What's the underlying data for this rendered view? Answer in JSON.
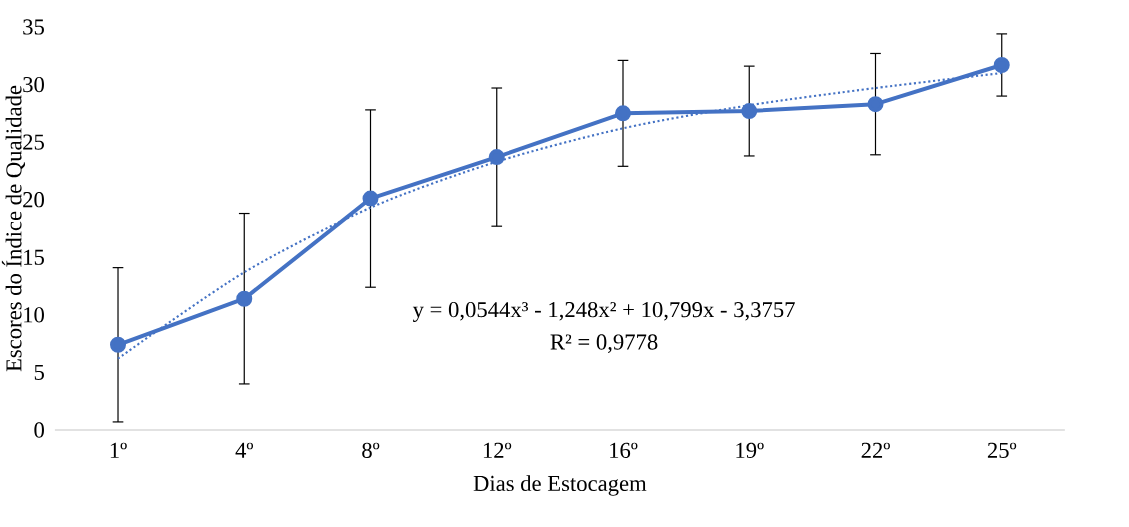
{
  "chart_data": {
    "type": "line",
    "xlabel": "Dias de Estocagem",
    "ylabel": "Escores do Índice de Qualidade",
    "categories": [
      "1º",
      "4º",
      "8º",
      "12º",
      "16º",
      "19º",
      "22º",
      "25º"
    ],
    "series": [
      {
        "color": "#4472c4",
        "marker": "circle",
        "line_style": "solid",
        "values": [
          7.4,
          11.4,
          20.1,
          23.7,
          27.5,
          27.7,
          28.3,
          31.7
        ],
        "errors": [
          6.7,
          7.4,
          7.7,
          6.0,
          4.6,
          3.9,
          4.4,
          2.7
        ]
      },
      {
        "type": "line",
        "color": "#4472c4",
        "marker": "none",
        "line_style": "dotted",
        "values": [
          6.2,
          13.7,
          19.3,
          23.3,
          26.2,
          28.2,
          29.7,
          31.0
        ]
      }
    ],
    "ylim": [
      0,
      35
    ],
    "yticks": [
      0,
      5,
      10,
      15,
      20,
      25,
      30,
      35
    ],
    "grid": false,
    "annotations": [
      "y = 0,0544x³ - 1,248x² + 10,799x - 3,3757",
      "R² = 0,9778"
    ]
  }
}
